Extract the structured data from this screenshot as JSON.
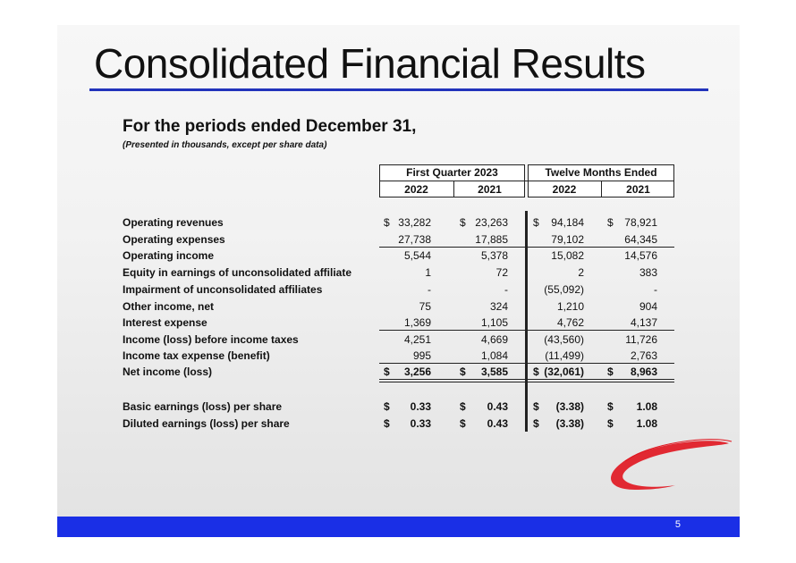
{
  "title": "Consolidated Financial Results",
  "subtitle": "For the periods ended December 31,",
  "note": "(Presented in thousands, except per share data)",
  "headers": {
    "group1": "First Quarter 2023",
    "group2": "Twelve Months Ended",
    "years": [
      "2022",
      "2021",
      "2022",
      "2021"
    ]
  },
  "currency_symbol": "$",
  "rows": [
    {
      "label": "Operating revenues",
      "values": [
        "33,282",
        "23,263",
        "94,184",
        "78,921"
      ],
      "currency": true
    },
    {
      "label": "Operating expenses",
      "values": [
        "27,738",
        "17,885",
        "79,102",
        "64,345"
      ]
    },
    {
      "label": "Operating income",
      "values": [
        "5,544",
        "5,378",
        "15,082",
        "14,576"
      ]
    },
    {
      "label": "Equity in earnings of unconsolidated affiliate",
      "values": [
        "1",
        "72",
        "2",
        "383"
      ]
    },
    {
      "label": "Impairment of unconsolidated affiliates",
      "values": [
        "-",
        "-",
        "(55,092)",
        "-"
      ]
    },
    {
      "label": "Other income, net",
      "values": [
        "75",
        "324",
        "1,210",
        "904"
      ]
    },
    {
      "label": "Interest expense",
      "values": [
        "1,369",
        "1,105",
        "4,762",
        "4,137"
      ]
    },
    {
      "label": "Income (loss) before income taxes",
      "values": [
        "4,251",
        "4,669",
        "(43,560)",
        "11,726"
      ]
    },
    {
      "label": "Income tax expense (benefit)",
      "values": [
        "995",
        "1,084",
        "(11,499)",
        "2,763"
      ]
    },
    {
      "label": "Net income (loss)",
      "values": [
        "3,256",
        "3,585",
        "(32,061)",
        "8,963"
      ],
      "currency": true,
      "bold": true
    },
    {
      "label": "Basic earnings (loss) per share",
      "values": [
        "0.33",
        "0.43",
        "(3.38)",
        "1.08"
      ],
      "currency": true,
      "bold": true
    },
    {
      "label": "Diluted earnings (loss) per share",
      "values": [
        "0.33",
        "0.43",
        "(3.38)",
        "1.08"
      ],
      "currency": true,
      "bold": true
    }
  ],
  "page_number": "5",
  "colors": {
    "accent": "#1a2fe6",
    "title_rule": "#2233bb",
    "logo": "#e0141e"
  }
}
